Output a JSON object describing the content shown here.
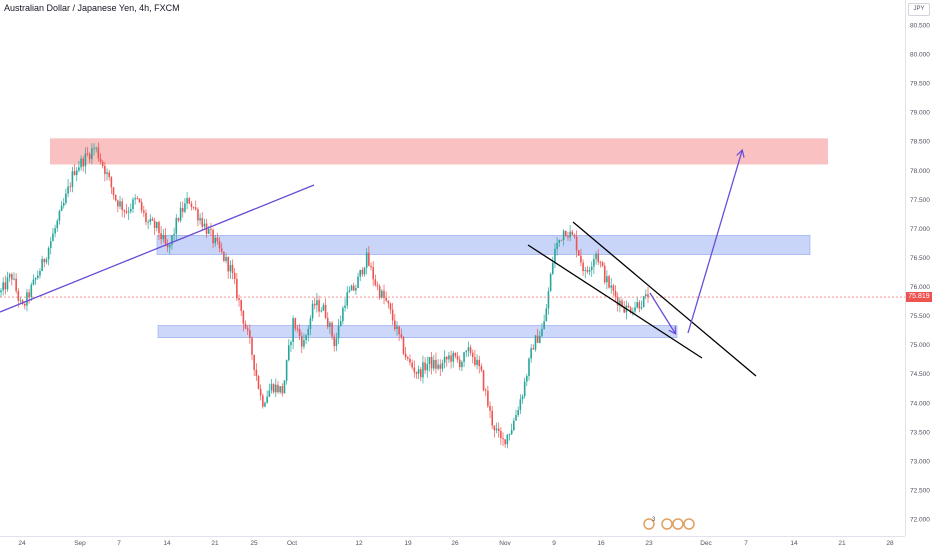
{
  "header": {
    "title": "Australian Dollar / Japanese Yen, 4h, FXCM",
    "currency": "JPY"
  },
  "colors": {
    "up": "#26a69a",
    "down": "#ef5350",
    "resistance_zone": "#f7a6a6",
    "support_zone": "#aabdf5",
    "trend": "#6a4cd7",
    "channel": "#000000",
    "current_price": "#ef5350",
    "event_marker": "#e0a060"
  },
  "price": {
    "current": "75.819"
  },
  "events": {
    "first_count": "3"
  },
  "chart_data": {
    "type": "candlestick",
    "title": "Australian Dollar / Japanese Yen, 4h, FXCM",
    "ylim": [
      71.8,
      80.9
    ],
    "x_tick_labels": [
      "24",
      "Sep",
      "7",
      "14",
      "21",
      "25",
      "Oct",
      "12",
      "19",
      "26",
      "Nov",
      "9",
      "16",
      "23",
      "Dec",
      "7",
      "14",
      "21",
      "28"
    ],
    "y_tick_labels": [
      "72.000",
      "72.500",
      "73.000",
      "73.500",
      "74.000",
      "74.500",
      "75.000",
      "75.500",
      "76.000",
      "76.500",
      "77.000",
      "77.500",
      "78.000",
      "78.500",
      "79.000",
      "79.500",
      "80.000",
      "80.500"
    ],
    "y_tick_values": [
      72,
      72.5,
      73,
      73.5,
      74,
      74.5,
      75,
      75.5,
      76,
      76.5,
      77,
      77.5,
      78,
      78.5,
      79,
      79.5,
      80,
      80.5
    ],
    "current_price": 75.819,
    "price_path": [
      75.9,
      76.2,
      75.6,
      76.0,
      76.4,
      76.9,
      77.4,
      78.0,
      78.2,
      78.4,
      78.0,
      77.5,
      77.3,
      77.5,
      77.1,
      77.0,
      76.6,
      77.2,
      77.5,
      77.2,
      76.9,
      76.6,
      76.3,
      75.6,
      74.9,
      74.0,
      74.3,
      74.2,
      75.4,
      75.0,
      75.7,
      75.6,
      75.0,
      75.8,
      76.0,
      76.5,
      76.0,
      75.7,
      75.2,
      74.7,
      74.5,
      74.7,
      74.6,
      74.8,
      74.7,
      74.9,
      74.5,
      73.7,
      73.3,
      73.6,
      74.2,
      75.0,
      75.3,
      76.6,
      77.0,
      76.8,
      76.2,
      76.6,
      76.1,
      75.8,
      75.6,
      75.7,
      75.8
    ],
    "annotations": [
      {
        "kind": "zone",
        "label": "resistance",
        "y1": 78.1,
        "y2": 78.55
      },
      {
        "kind": "zone",
        "label": "supply",
        "y1": 76.55,
        "y2": 76.88
      },
      {
        "kind": "zone",
        "label": "demand",
        "y1": 75.12,
        "y2": 75.33
      },
      {
        "kind": "trendline",
        "label": "rising trendline"
      },
      {
        "kind": "channel",
        "label": "descending channel"
      },
      {
        "kind": "arrow",
        "label": "projected path"
      }
    ]
  }
}
